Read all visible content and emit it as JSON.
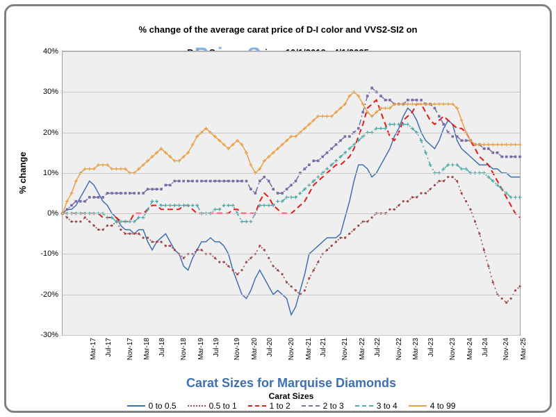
{
  "title_line1": "% change of the average carat price of  D-I color and VVS2-SI2  on",
  "title_line2": "PriceScope.com since 10/1/2016 - 4/1/2025",
  "watermark": "PriceScope.com",
  "ylabel": "% change",
  "xaxis_title1": "Carat Sizes for Marquise Diamonds",
  "xaxis_title2": "Carat Sizes",
  "chart": {
    "type": "line",
    "background_color": "#efefef",
    "grid_color": "#c8c8c8",
    "ylim": [
      -30,
      40
    ],
    "ytick_step": 10,
    "yticks": [
      -30,
      -20,
      -10,
      0,
      10,
      20,
      30,
      40
    ],
    "n_points": 103,
    "xtick_every": 4,
    "xtick_labels": [
      "Mar-17",
      "Jul-17",
      "Nov-17",
      "Mar-18",
      "Jul-18",
      "Nov-18",
      "Mar-19",
      "Jul-19",
      "Nov-19",
      "Mar-20",
      "Jul-20",
      "Nov-20",
      "Mar-21",
      "Jul-21",
      "Nov-21",
      "Mar-22",
      "Jul-22",
      "Nov-22",
      "Mar-23",
      "Jul-23",
      "Nov-23",
      "Mar-24",
      "Jul-24",
      "Nov-24",
      "Mar-25"
    ],
    "series": [
      {
        "name": "0 to 0.5",
        "color": "#3f6fb0",
        "dash": "solid",
        "marker": "none",
        "line_width": 1.5,
        "values": [
          0,
          1,
          1,
          2,
          4,
          6,
          8,
          7,
          5,
          3,
          2,
          0,
          -1,
          -3,
          -4,
          -4,
          -5,
          -4,
          -4,
          -7,
          -9,
          -7,
          -6,
          -5,
          -7,
          -9,
          -10,
          -13,
          -14,
          -11,
          -9,
          -7,
          -7,
          -6,
          -7,
          -7,
          -8,
          -10,
          -14,
          -17,
          -20,
          -21,
          -19,
          -16,
          -14,
          -16,
          -18,
          -20,
          -19,
          -20,
          -21,
          -25,
          -23,
          -19,
          -15,
          -10,
          -9,
          -8,
          -7,
          -6,
          -6,
          -6,
          -5,
          -1,
          3,
          8,
          12,
          12,
          11,
          9,
          10,
          12,
          14,
          16,
          19,
          21,
          24,
          26,
          25,
          23,
          20,
          18,
          17,
          16,
          18,
          21,
          23,
          22,
          18,
          16,
          15,
          14,
          13,
          12,
          12,
          12,
          11,
          11,
          10,
          10,
          9,
          9,
          9
        ]
      },
      {
        "name": "0.5 to 1",
        "color": "#9e4a4a",
        "dash": "dotted",
        "marker": "dot",
        "line_width": 1.5,
        "values": [
          0,
          -1,
          -2,
          -2,
          -2,
          -1,
          -2,
          -3,
          -4,
          -4,
          -3,
          -3,
          -2,
          -4,
          -5,
          -5,
          -5,
          -5,
          -6,
          -6,
          -7,
          -7,
          -7,
          -8,
          -8,
          -9,
          -10,
          -11,
          -10,
          -10,
          -9,
          -9,
          -10,
          -10,
          -11,
          -12,
          -12,
          -13,
          -14,
          -15,
          -14,
          -12,
          -11,
          -10,
          -8,
          -9,
          -11,
          -13,
          -14,
          -15,
          -17,
          -18,
          -19,
          -20,
          -19,
          -16,
          -14,
          -12,
          -10,
          -9,
          -8,
          -7,
          -6,
          -6,
          -5,
          -4,
          -3,
          -2,
          -2,
          -1,
          0,
          0,
          0,
          1,
          1,
          2,
          3,
          3,
          4,
          4,
          5,
          5,
          6,
          7,
          8,
          8,
          9,
          9,
          8,
          5,
          3,
          1,
          -2,
          -5,
          -9,
          -13,
          -17,
          -20,
          -21,
          -22,
          -21,
          -19,
          -18
        ]
      },
      {
        "name": "1 to 2",
        "color": "#e11a1a",
        "dash": "dashed",
        "marker": "none",
        "line_width": 2,
        "values": [
          0,
          0,
          0,
          0,
          0,
          0,
          0,
          0,
          0,
          -1,
          -1,
          -1,
          -1,
          -2,
          -2,
          -2,
          0,
          0,
          0,
          1,
          2,
          2,
          1,
          1,
          1,
          1,
          1,
          2,
          2,
          1,
          0,
          0,
          0,
          0,
          0,
          0,
          0,
          0,
          1,
          1,
          0,
          0,
          0,
          0,
          3,
          5,
          4,
          2,
          1,
          0,
          0,
          0,
          1,
          2,
          3,
          5,
          7,
          8,
          9,
          10,
          11,
          12,
          12,
          13,
          14,
          16,
          19,
          22,
          26,
          27,
          28,
          25,
          22,
          19,
          18,
          20,
          23,
          24,
          25,
          27,
          27,
          25,
          23,
          22,
          23,
          24,
          23,
          22,
          21,
          21,
          20,
          18,
          16,
          14,
          13,
          12,
          10,
          8,
          6,
          4,
          2,
          0,
          -1
        ]
      },
      {
        "name": "2 to 3",
        "color": "#7a6aa8",
        "dash": "dash-dot",
        "marker": "square",
        "line_width": 1.5,
        "values": [
          0,
          1,
          2,
          3,
          3,
          3,
          4,
          4,
          4,
          4,
          5,
          5,
          5,
          5,
          5,
          5,
          5,
          5,
          5,
          6,
          6,
          6,
          6,
          7,
          7,
          8,
          8,
          8,
          8,
          8,
          8,
          8,
          8,
          8,
          8,
          8,
          8,
          8,
          8,
          8,
          8,
          8,
          6,
          5,
          8,
          9,
          8,
          6,
          5,
          5,
          6,
          7,
          8,
          10,
          11,
          12,
          13,
          13,
          14,
          15,
          16,
          17,
          18,
          19,
          19,
          20,
          21,
          25,
          29,
          31,
          30,
          29,
          28,
          28,
          27,
          27,
          27,
          28,
          28,
          28,
          28,
          27,
          27,
          26,
          24,
          22,
          20,
          19,
          19,
          18,
          18,
          18,
          17,
          17,
          16,
          16,
          15,
          15,
          14,
          14,
          14,
          14,
          14
        ]
      },
      {
        "name": "3 to 4",
        "color": "#4fa8a8",
        "dash": "dash-dot",
        "marker": "plus",
        "line_width": 1.5,
        "values": [
          0,
          0,
          0,
          0,
          0,
          0,
          0,
          0,
          0,
          0,
          -1,
          -1,
          -2,
          -2,
          -2,
          -2,
          -2,
          -1,
          -1,
          1,
          3,
          3,
          2,
          2,
          2,
          2,
          2,
          2,
          2,
          2,
          2,
          0,
          0,
          0,
          1,
          1,
          2,
          2,
          2,
          0,
          -2,
          -2,
          -2,
          0,
          2,
          2,
          2,
          2,
          3,
          3,
          4,
          4,
          4,
          5,
          6,
          7,
          8,
          9,
          10,
          11,
          12,
          13,
          14,
          15,
          16,
          17,
          18,
          19,
          20,
          20,
          21,
          21,
          21,
          22,
          22,
          22,
          22,
          22,
          21,
          20,
          18,
          15,
          12,
          10,
          10,
          11,
          12,
          12,
          12,
          11,
          11,
          10,
          10,
          10,
          10,
          9,
          8,
          7,
          6,
          5,
          4,
          4,
          4
        ]
      },
      {
        "name": "4 to 99",
        "color": "#e8a148",
        "dash": "solid",
        "marker": "plus",
        "line_width": 1.5,
        "values": [
          0,
          3,
          5,
          8,
          10,
          11,
          11,
          11,
          12,
          12,
          12,
          11,
          11,
          11,
          11,
          10,
          10,
          11,
          12,
          13,
          14,
          15,
          16,
          15,
          14,
          13,
          13,
          14,
          15,
          17,
          19,
          20,
          21,
          20,
          19,
          18,
          17,
          16,
          17,
          18,
          17,
          15,
          12,
          10,
          11,
          13,
          14,
          15,
          16,
          17,
          18,
          19,
          19,
          20,
          21,
          22,
          23,
          24,
          24,
          24,
          24,
          25,
          26,
          27,
          29,
          30,
          29,
          27,
          25,
          24,
          25,
          26,
          26,
          26,
          27,
          27,
          27,
          27,
          27,
          27,
          27,
          27,
          27,
          27,
          27,
          27,
          27,
          27,
          26,
          23,
          20,
          18,
          17,
          17,
          17,
          17,
          17,
          17,
          17,
          17,
          17,
          17,
          17
        ]
      }
    ]
  },
  "legend_dash_css": {
    "solid": "solid",
    "dashed": "dashed",
    "dotted": "dotted",
    "dash-dot": "dashed"
  }
}
